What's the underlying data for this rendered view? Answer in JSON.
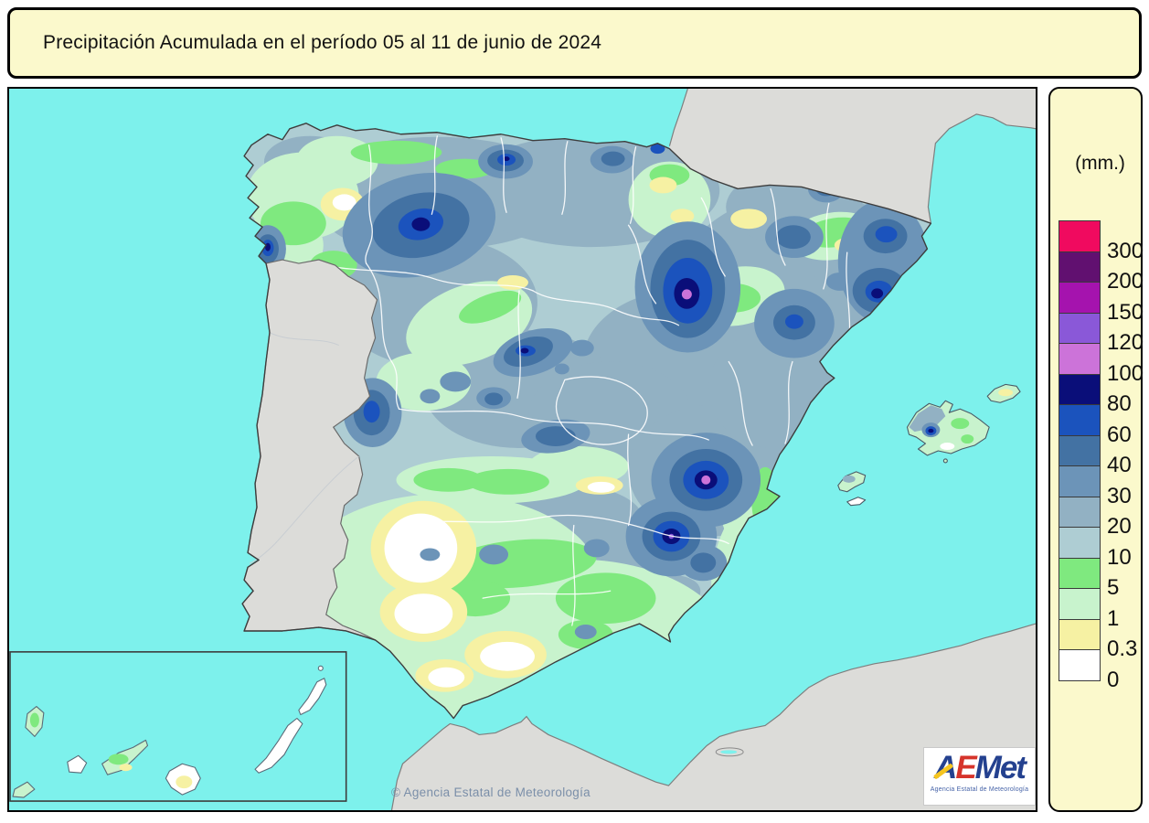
{
  "title": "Precipitación Acumulada en el período 05 al 11 de junio de 2024",
  "legend": {
    "unit_label": "(mm.)",
    "scale_values_mm": [
      300,
      200,
      150,
      120,
      100,
      80,
      60,
      40,
      30,
      20,
      10,
      5,
      1,
      0.3,
      0
    ],
    "bands": [
      {
        "key": "p300",
        "label": "300"
      },
      {
        "key": "p200",
        "label": "200"
      },
      {
        "key": "p150",
        "label": "150"
      },
      {
        "key": "p120",
        "label": "120"
      },
      {
        "key": "p100",
        "label": "100"
      },
      {
        "key": "p80",
        "label": "80"
      },
      {
        "key": "p60",
        "label": "60"
      },
      {
        "key": "p40",
        "label": "40"
      },
      {
        "key": "p30",
        "label": "30"
      },
      {
        "key": "p20",
        "label": "20"
      },
      {
        "key": "p10",
        "label": "10"
      },
      {
        "key": "p5",
        "label": "5"
      },
      {
        "key": "p1",
        "label": "1"
      },
      {
        "key": "p03",
        "label": "0.3"
      },
      {
        "key": "p0",
        "label": "0"
      }
    ]
  },
  "map": {
    "copyright": "© Agencia Estatal de Meteorología",
    "logo": {
      "word": "AEMet",
      "subtitle": "Agencia Estatal de Meteorología"
    }
  },
  "colors": {
    "panel": "#FBF9CC",
    "sea": "#7DF1EC",
    "land": "#DCDCD9",
    "p300": "#F00A5F",
    "p200": "#611070",
    "p150": "#A513AE",
    "p120": "#8A58D8",
    "p100": "#CC73D9",
    "p80": "#0A0E79",
    "p60": "#1B53BD",
    "p40": "#4372A3",
    "p30": "#6C94B8",
    "p20": "#92B1C3",
    "p10": "#AECDD3",
    "p5": "#7FE97F",
    "p1": "#C8F3CD",
    "p03": "#F6F1A3",
    "p0": "#FFFFFF"
  }
}
